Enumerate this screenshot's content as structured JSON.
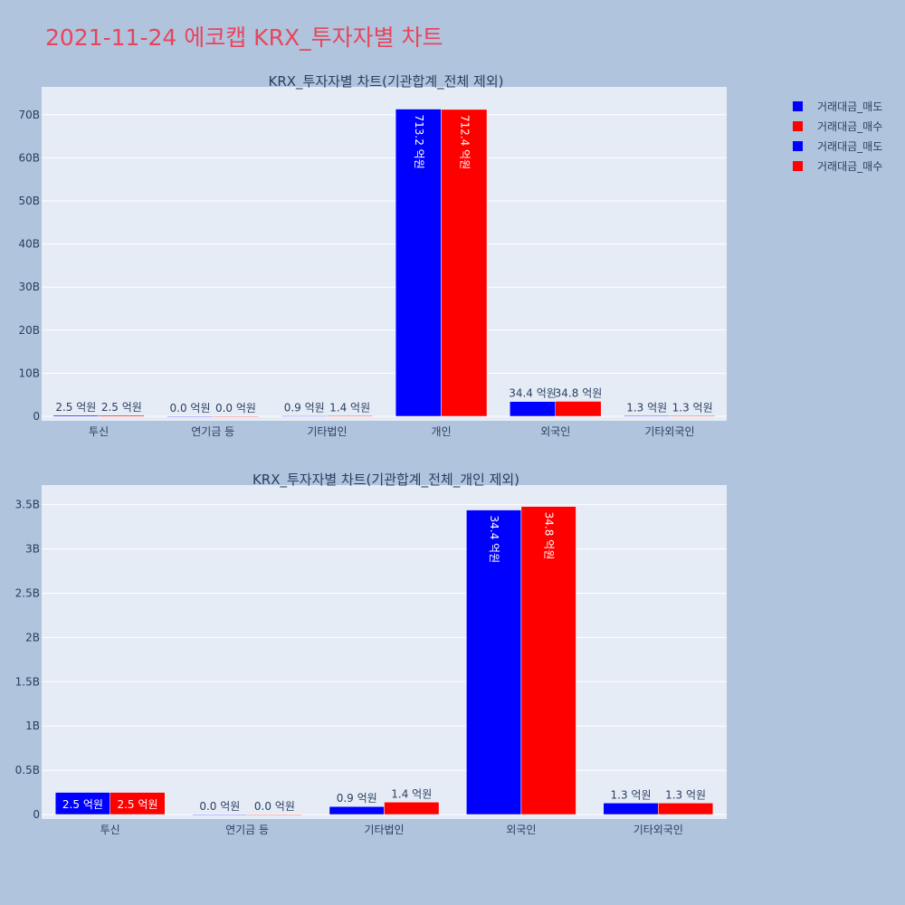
{
  "title": "2021-11-24 에코캡 KRX_투자자별 차트",
  "legend": [
    {
      "label": "거래대금_매도",
      "color": "#0000ff"
    },
    {
      "label": "거래대금_매수",
      "color": "#ff0000"
    },
    {
      "label": "거래대금_매도",
      "color": "#0000ff"
    },
    {
      "label": "거래대금_매수",
      "color": "#ff0000"
    }
  ],
  "chart_data": [
    {
      "type": "bar",
      "title": "KRX_투자자별 차트(기관합계_전체 제외)",
      "categories": [
        "투신",
        "연기금 등",
        "기타법인",
        "개인",
        "외국인",
        "기타외국인"
      ],
      "series": [
        {
          "name": "거래대금_매도",
          "color": "#0000ff",
          "values": [
            250000000,
            0,
            90000000,
            71320000000,
            3440000000,
            130000000
          ],
          "labels": [
            "2.5 억원",
            "0.0 억원",
            "0.9 억원",
            "713.2 억원",
            "34.4 억원",
            "1.3 억원"
          ]
        },
        {
          "name": "거래대금_매수",
          "color": "#ff0000",
          "values": [
            250000000,
            0,
            140000000,
            71240000000,
            3480000000,
            130000000
          ],
          "labels": [
            "2.5 억원",
            "0.0 억원",
            "1.4 억원",
            "712.4 억원",
            "34.8 억원",
            "1.3 억원"
          ]
        }
      ],
      "ylim": [
        0,
        75000000000
      ],
      "yticks": [
        0,
        10000000000,
        20000000000,
        30000000000,
        40000000000,
        50000000000,
        60000000000,
        70000000000
      ],
      "ytick_labels": [
        "0",
        "10B",
        "20B",
        "30B",
        "40B",
        "50B",
        "60B",
        "70B"
      ],
      "grid": true,
      "legend_position": "top-right"
    },
    {
      "type": "bar",
      "title": "KRX_투자자별 차트(기관합계_전체_개인 제외)",
      "categories": [
        "투신",
        "연기금 등",
        "기타법인",
        "외국인",
        "기타외국인"
      ],
      "series": [
        {
          "name": "거래대금_매도",
          "color": "#0000ff",
          "values": [
            250000000,
            0,
            90000000,
            3440000000,
            130000000
          ],
          "labels": [
            "2.5 억원",
            "0.0 억원",
            "0.9 억원",
            "34.4 억원",
            "1.3 억원"
          ]
        },
        {
          "name": "거래대금_매수",
          "color": "#ff0000",
          "values": [
            250000000,
            0,
            140000000,
            3480000000,
            130000000
          ],
          "labels": [
            "2.5 억원",
            "0.0 억원",
            "1.4 억원",
            "34.8 억원",
            "1.3 억원"
          ]
        }
      ],
      "ylim": [
        0,
        3650000000
      ],
      "yticks": [
        0,
        500000000,
        1000000000,
        1500000000,
        2000000000,
        2500000000,
        3000000000,
        3500000000
      ],
      "ytick_labels": [
        "0",
        "0.5B",
        "1B",
        "1.5B",
        "2B",
        "2.5B",
        "3B",
        "3.5B"
      ],
      "grid": true,
      "legend_position": "top-right"
    }
  ]
}
